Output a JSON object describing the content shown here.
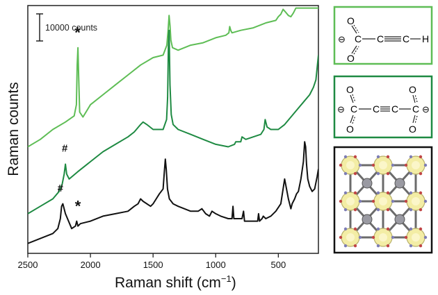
{
  "chart_data": {
    "type": "line",
    "xlabel_main": "Raman shift (cm",
    "xlabel_sup": "−1",
    "xlabel_close": ")",
    "ylabel": "Raman counts",
    "xlim": [
      2500,
      180
    ],
    "x_reversed": true,
    "ylim": [
      0,
      1
    ],
    "y_ticks_shown": false,
    "x_ticks": [
      2500,
      2000,
      1500,
      1000,
      500
    ],
    "x_tick_labels": [
      "2500",
      "2000",
      "1500",
      "1000",
      "500"
    ],
    "scale_bar_label": "10000 counts",
    "scale_bar_fraction_of_yaxis": 0.11,
    "series": [
      {
        "color": "#5ebd55",
        "x": [
          2500,
          2400,
          2300,
          2200,
          2130,
          2112,
          2106,
          2100,
          2094,
          2086,
          2060,
          2000,
          1900,
          1800,
          1700,
          1600,
          1500,
          1420,
          1390,
          1380,
          1372,
          1365,
          1358,
          1345,
          1300,
          1200,
          1100,
          1000,
          920,
          895,
          888,
          880,
          870,
          800,
          700,
          600,
          520,
          500,
          480,
          462,
          445,
          420,
          400,
          380,
          360,
          340,
          320,
          300,
          280,
          260,
          240,
          220,
          200,
          180
        ],
        "y": [
          0.43,
          0.46,
          0.5,
          0.53,
          0.555,
          0.6,
          0.76,
          0.83,
          0.72,
          0.57,
          0.55,
          0.6,
          0.64,
          0.68,
          0.72,
          0.76,
          0.79,
          0.8,
          0.84,
          0.9,
          0.96,
          0.92,
          0.86,
          0.83,
          0.82,
          0.84,
          0.85,
          0.87,
          0.88,
          0.89,
          0.915,
          0.9,
          0.89,
          0.9,
          0.91,
          0.93,
          0.94,
          0.955,
          0.965,
          0.985,
          0.975,
          0.96,
          0.955,
          0.97,
          0.99,
          0.99,
          0.99,
          0.99,
          0.99,
          0.99,
          0.99,
          0.99,
          0.99,
          0.99
        ]
      },
      {
        "color": "#1e8a42",
        "x": [
          2500,
          2400,
          2300,
          2250,
          2225,
          2210,
          2200,
          2190,
          2170,
          2100,
          2000,
          1900,
          1800,
          1700,
          1650,
          1600,
          1580,
          1550,
          1500,
          1420,
          1392,
          1384,
          1378,
          1372,
          1365,
          1355,
          1340,
          1300,
          1200,
          1100,
          1000,
          900,
          850,
          840,
          800,
          790,
          760,
          700,
          640,
          615,
          605,
          590,
          560,
          500,
          450,
          400,
          350,
          300,
          250,
          220,
          200,
          190,
          180
        ],
        "y": [
          0.16,
          0.19,
          0.22,
          0.25,
          0.28,
          0.32,
          0.36,
          0.32,
          0.3,
          0.33,
          0.37,
          0.41,
          0.44,
          0.47,
          0.49,
          0.52,
          0.53,
          0.52,
          0.5,
          0.5,
          0.54,
          0.63,
          0.83,
          0.9,
          0.68,
          0.56,
          0.52,
          0.5,
          0.48,
          0.46,
          0.44,
          0.43,
          0.44,
          0.45,
          0.45,
          0.47,
          0.46,
          0.47,
          0.48,
          0.5,
          0.54,
          0.51,
          0.5,
          0.5,
          0.52,
          0.55,
          0.58,
          0.61,
          0.64,
          0.67,
          0.7,
          0.75,
          0.8
        ]
      },
      {
        "color": "#111111",
        "x": [
          2500,
          2400,
          2300,
          2260,
          2240,
          2230,
          2220,
          2200,
          2150,
          2120,
          2110,
          2100,
          2080,
          2000,
          1900,
          1800,
          1700,
          1650,
          1620,
          1600,
          1580,
          1520,
          1500,
          1450,
          1420,
          1410,
          1402,
          1395,
          1385,
          1370,
          1340,
          1300,
          1200,
          1140,
          1110,
          1080,
          1050,
          1030,
          1000,
          960,
          900,
          870,
          862,
          855,
          830,
          790,
          778,
          770,
          740,
          700,
          665,
          658,
          650,
          630,
          620,
          600,
          560,
          520,
          480,
          462,
          450,
          435,
          420,
          400,
          390,
          370,
          355,
          340,
          320,
          300,
          290,
          282,
          275,
          265,
          250,
          230,
          210,
          190,
          180
        ],
        "y": [
          0.04,
          0.06,
          0.08,
          0.1,
          0.14,
          0.19,
          0.2,
          0.16,
          0.1,
          0.11,
          0.13,
          0.11,
          0.12,
          0.13,
          0.15,
          0.16,
          0.17,
          0.19,
          0.2,
          0.22,
          0.21,
          0.19,
          0.2,
          0.24,
          0.26,
          0.33,
          0.38,
          0.34,
          0.26,
          0.22,
          0.2,
          0.19,
          0.17,
          0.17,
          0.18,
          0.16,
          0.15,
          0.17,
          0.16,
          0.15,
          0.14,
          0.14,
          0.19,
          0.14,
          0.14,
          0.14,
          0.17,
          0.13,
          0.13,
          0.13,
          0.13,
          0.16,
          0.13,
          0.14,
          0.15,
          0.14,
          0.15,
          0.17,
          0.2,
          0.26,
          0.3,
          0.26,
          0.22,
          0.18,
          0.2,
          0.22,
          0.24,
          0.25,
          0.3,
          0.37,
          0.45,
          0.43,
          0.36,
          0.3,
          0.27,
          0.25,
          0.26,
          0.31,
          0.34
        ]
      }
    ],
    "annotations": [
      {
        "text": "*",
        "x": 2103,
        "y": 0.87
      },
      {
        "text": "#",
        "x": 2205,
        "y": 0.41
      },
      {
        "text": "#",
        "x": 2240,
        "y": 0.25
      },
      {
        "text": "*",
        "x": 2100,
        "y": 0.17
      }
    ]
  },
  "structures": [
    {
      "name": "propiolate",
      "border_color": "#5ebd55",
      "minus": "⊖",
      "o_top": "O",
      "o_bottom": "O",
      "carbon": "C",
      "c2": "C",
      "c3": "C",
      "hydrogen": "H"
    },
    {
      "name": "acetylenedicarboxylate",
      "border_color": "#1e8a42",
      "minus_left": "⊖",
      "minus_right": "⊖",
      "oxygen": "O",
      "carbon": "C"
    },
    {
      "name": "mof-framework",
      "border_color": "#111111"
    }
  ]
}
